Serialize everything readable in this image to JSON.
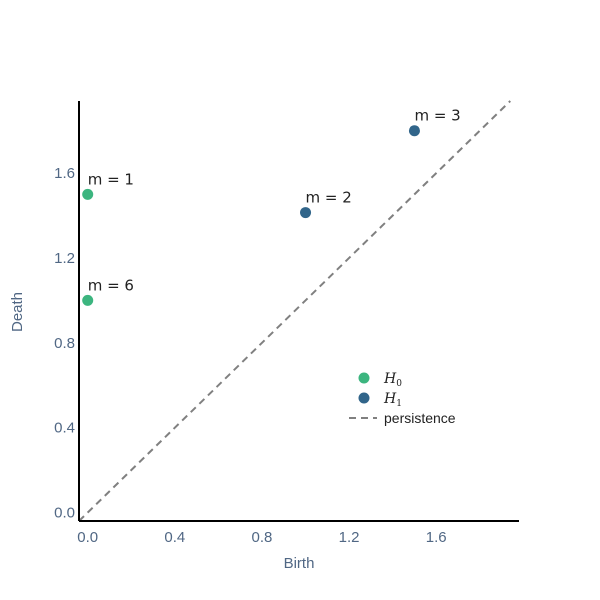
{
  "chart_data": {
    "type": "scatter",
    "xlabel": "Birth",
    "ylabel": "Death",
    "xlim": [
      -0.04,
      1.98
    ],
    "ylim": [
      -0.04,
      1.94
    ],
    "x_ticks": [
      0.0,
      0.4,
      0.8,
      1.2,
      1.6
    ],
    "x_tick_labels": [
      "0.0",
      "0.4",
      "0.8",
      "1.2",
      "1.6"
    ],
    "y_ticks": [
      0.0,
      0.4,
      0.8,
      1.2,
      1.6
    ],
    "y_tick_labels": [
      "0.0",
      "0.4",
      "0.8",
      "1.2",
      "1.6"
    ],
    "grid": false,
    "legend_position": "center-right",
    "series": [
      {
        "name": "H0",
        "name_base": "H",
        "name_sub": "0",
        "color": "#3cb57f",
        "points": [
          {
            "x": 0.0,
            "y": 1.5,
            "label": "m = 1"
          },
          {
            "x": 0.0,
            "y": 1.0,
            "label": "m = 6"
          }
        ]
      },
      {
        "name": "H1",
        "name_base": "H",
        "name_sub": "1",
        "color": "#31658a",
        "points": [
          {
            "x": 1.0,
            "y": 1.414,
            "label": "m = 2"
          },
          {
            "x": 1.5,
            "y": 1.8,
            "label": "m = 3"
          }
        ]
      }
    ],
    "diagonal": {
      "name": "persistence",
      "color": "#808080",
      "style": "dashed",
      "from": [
        -0.04,
        -0.04
      ],
      "to": [
        1.94,
        1.94
      ]
    }
  }
}
